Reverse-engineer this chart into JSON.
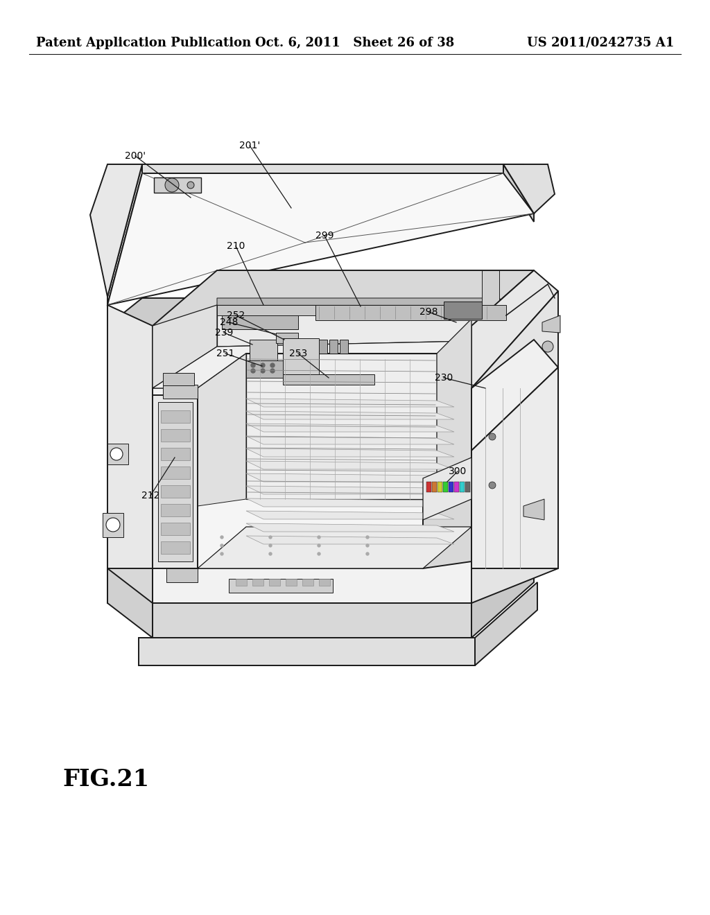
{
  "background_color": "#ffffff",
  "header_left": "Patent Application Publication",
  "header_center": "Oct. 6, 2011   Sheet 26 of 38",
  "header_right": "US 2011/0242735 A1",
  "figure_label": "FIG.21",
  "line_color": "#1a1a1a",
  "light_gray": "#d8d8d8",
  "med_gray": "#b8b8b8",
  "dark_gray": "#888888",
  "lw_main": 1.4,
  "lw_thin": 0.7,
  "lw_inner": 0.9
}
